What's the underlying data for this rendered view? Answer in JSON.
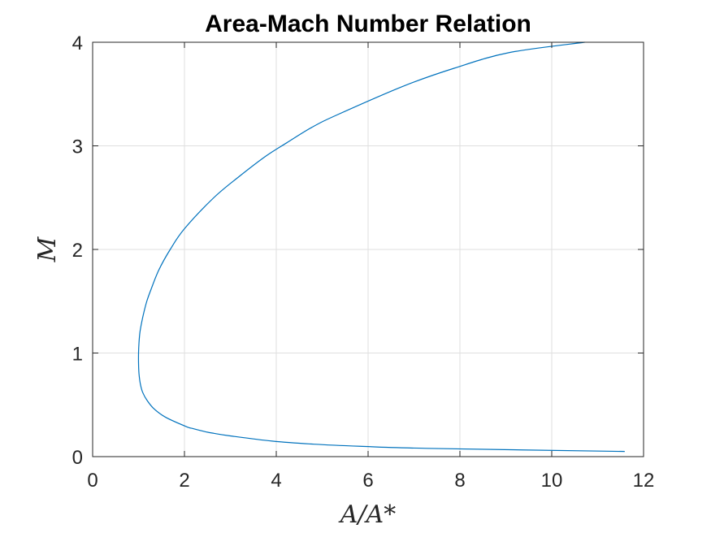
{
  "chart_data": {
    "type": "line",
    "title": "Area-Mach Number Relation",
    "xlabel": "A/A*",
    "ylabel": "M",
    "xlim": [
      0,
      12
    ],
    "ylim": [
      0,
      4
    ],
    "xticks": [
      0,
      2,
      4,
      6,
      8,
      10,
      12
    ],
    "yticks": [
      0,
      1,
      2,
      3,
      4
    ],
    "grid": true,
    "series": [
      {
        "color": "#0072BD",
        "x": [
          11.59,
          7.26,
          5.82,
          4.82,
          3.91,
          3.0,
          2.64,
          2.46,
          2.19,
          2.04,
          1.59,
          1.34,
          1.19,
          1.09,
          1.04,
          1.01,
          1.0,
          1.0,
          1.01,
          1.03,
          1.07,
          1.12,
          1.18,
          1.26,
          1.44,
          1.69,
          2.0,
          2.64,
          3.18,
          3.77,
          4.23,
          4.78,
          5.33,
          6.79,
          7.88,
          9.07,
          10.72
        ],
        "y": [
          0.05,
          0.08,
          0.1,
          0.12,
          0.15,
          0.2,
          0.225,
          0.24,
          0.27,
          0.29,
          0.38,
          0.46,
          0.54,
          0.62,
          0.7,
          0.8,
          0.9,
          1.0,
          1.1,
          1.2,
          1.3,
          1.4,
          1.5,
          1.6,
          1.8,
          2.0,
          2.2,
          2.5,
          2.7,
          2.9,
          3.03,
          3.18,
          3.3,
          3.58,
          3.75,
          3.9,
          4.0
        ]
      }
    ]
  }
}
